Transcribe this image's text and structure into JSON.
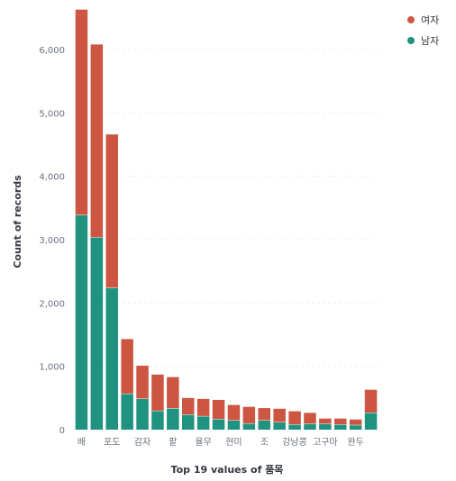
{
  "chart_data": {
    "type": "bar",
    "stacked": true,
    "xlabel": "Top 19 values of 품목",
    "ylabel": "Count of records",
    "ylim": [
      0,
      6500
    ],
    "yticks": [
      0,
      1000,
      2000,
      3000,
      4000,
      5000,
      6000
    ],
    "ytick_labels": [
      "0",
      "1,000",
      "2,000",
      "3,000",
      "4,000",
      "5,000",
      "6,000"
    ],
    "grid": true,
    "legend_position": "top-right",
    "categories": [
      "배",
      "",
      "포도",
      "",
      "감자",
      "",
      "팥",
      "",
      "율무",
      "",
      "현미",
      "",
      "조",
      "",
      "강낭콩",
      "",
      "고구마",
      "",
      "완두",
      ""
    ],
    "series": [
      {
        "name": "남자",
        "color": "#209280",
        "values": [
          3390,
          3040,
          2240,
          570,
          490,
          300,
          340,
          240,
          215,
          170,
          150,
          100,
          150,
          120,
          85,
          95,
          95,
          85,
          75,
          270
        ]
      },
      {
        "name": "여자",
        "color": "#cc5642",
        "values": [
          3240,
          3040,
          2420,
          860,
          520,
          570,
          490,
          260,
          270,
          300,
          240,
          260,
          190,
          210,
          205,
          170,
          80,
          90,
          85,
          360
        ]
      }
    ]
  }
}
